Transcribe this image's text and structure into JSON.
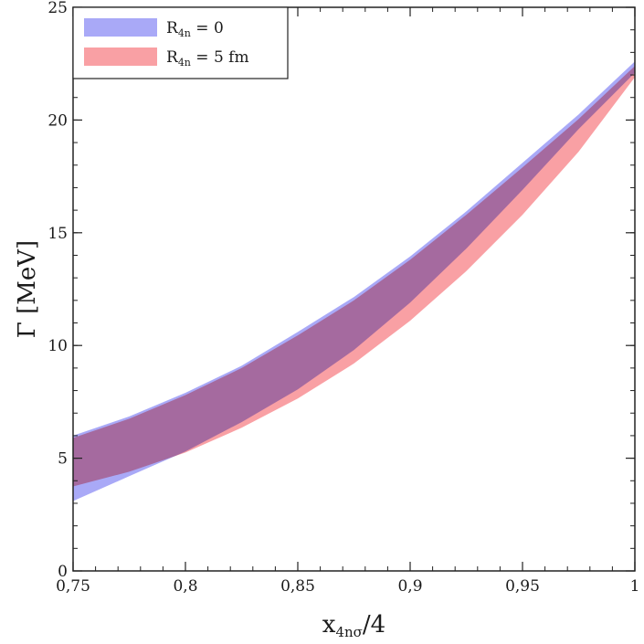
{
  "chart_data": {
    "type": "area",
    "xlabel": "x",
    "xlabel_sub": "4nσ",
    "xlabel_suffix": "/4",
    "ylabel": "Γ [MeV]",
    "xlim": [
      0.75,
      1.0
    ],
    "ylim": [
      0,
      25
    ],
    "x_ticks": [
      {
        "value": 0.75,
        "label": "0,75"
      },
      {
        "value": 0.8,
        "label": "0,8"
      },
      {
        "value": 0.85,
        "label": "0,85"
      },
      {
        "value": 0.9,
        "label": "0,9"
      },
      {
        "value": 0.95,
        "label": "0,95"
      },
      {
        "value": 1.0,
        "label": "1"
      }
    ],
    "y_ticks": [
      {
        "value": 0,
        "label": "0"
      },
      {
        "value": 5,
        "label": "5"
      },
      {
        "value": 10,
        "label": "10"
      },
      {
        "value": 15,
        "label": "15"
      },
      {
        "value": 20,
        "label": "20"
      },
      {
        "value": 25,
        "label": "25"
      }
    ],
    "legend_position": "top-left",
    "series": [
      {
        "name": "R",
        "name_sub": "4n",
        "name_suffix": " = 0",
        "color": "#a9a9f7",
        "x": [
          0.75,
          0.775,
          0.8,
          0.825,
          0.85,
          0.875,
          0.9,
          0.925,
          0.95,
          0.975,
          1.0
        ],
        "lower": [
          3.1,
          4.2,
          5.3,
          6.6,
          8.05,
          9.8,
          11.9,
          14.3,
          16.9,
          19.6,
          22.1
        ],
        "upper": [
          6.0,
          6.85,
          7.9,
          9.1,
          10.6,
          12.15,
          13.95,
          15.95,
          18.1,
          20.25,
          22.6
        ]
      },
      {
        "name": "R",
        "name_sub": "4n",
        "name_suffix": " = 5 fm",
        "color": "#f9a0a4",
        "x": [
          0.75,
          0.775,
          0.8,
          0.825,
          0.85,
          0.875,
          0.9,
          0.925,
          0.95,
          0.975,
          1.0
        ],
        "lower": [
          3.75,
          4.4,
          5.25,
          6.35,
          7.65,
          9.2,
          11.1,
          13.3,
          15.8,
          18.6,
          21.9
        ],
        "upper": [
          5.9,
          6.75,
          7.8,
          9.0,
          10.45,
          12.0,
          13.8,
          15.8,
          17.9,
          20.05,
          22.4
        ]
      }
    ]
  }
}
